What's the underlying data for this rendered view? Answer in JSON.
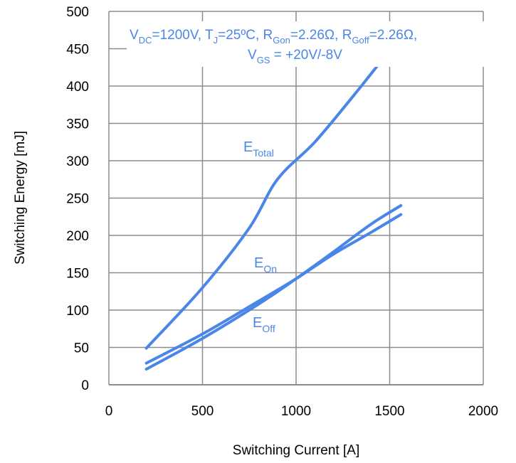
{
  "chart_data": {
    "type": "line",
    "xlabel": "Switching Current [A]",
    "ylabel": "Switching Energy [mJ]",
    "xlim": [
      0,
      2000
    ],
    "ylim": [
      0,
      500
    ],
    "xticks": [
      "0",
      "500",
      "1000",
      "1500",
      "2000"
    ],
    "yticks": [
      "0",
      "50",
      "100",
      "150",
      "200",
      "250",
      "300",
      "350",
      "400",
      "450",
      "500"
    ],
    "grid": true,
    "conditions": {
      "line1": {
        "vdc_main": "V",
        "vdc_sub": "DC",
        "vdc_val": "=1200V, ",
        "tj_main": "T",
        "tj_sub": "J",
        "tj_val": "=25ºC, ",
        "rgon_main": "R",
        "rgon_sub": "Gon",
        "rgon_val": "=2.26Ω, ",
        "rgoff_main": "R",
        "rgoff_sub": "Goff",
        "rgoff_val": "=2.26Ω,"
      },
      "line2": {
        "vgs_main": "V",
        "vgs_sub": "GS",
        "vgs_val": " = +20V/-8V"
      }
    },
    "series_labels": {
      "total": {
        "main": "E",
        "sub": "Total"
      },
      "on": {
        "main": "E",
        "sub": "On"
      },
      "off": {
        "main": "E",
        "sub": "Off"
      }
    },
    "series": [
      {
        "name": "E_Total",
        "points": [
          [
            200,
            49
          ],
          [
            500,
            130
          ],
          [
            750,
            210
          ],
          [
            900,
            275
          ],
          [
            1100,
            325
          ],
          [
            1300,
            385
          ],
          [
            1450,
            432
          ]
        ]
      },
      {
        "name": "E_On",
        "points": [
          [
            200,
            21
          ],
          [
            500,
            62
          ],
          [
            800,
            108
          ],
          [
            1000,
            142
          ],
          [
            1200,
            178
          ],
          [
            1400,
            215
          ],
          [
            1560,
            240
          ]
        ]
      },
      {
        "name": "E_Off",
        "points": [
          [
            200,
            29
          ],
          [
            500,
            68
          ],
          [
            800,
            112
          ],
          [
            1000,
            142
          ],
          [
            1200,
            175
          ],
          [
            1400,
            204
          ],
          [
            1560,
            228
          ]
        ]
      }
    ],
    "line_color": "#4a86e8"
  }
}
